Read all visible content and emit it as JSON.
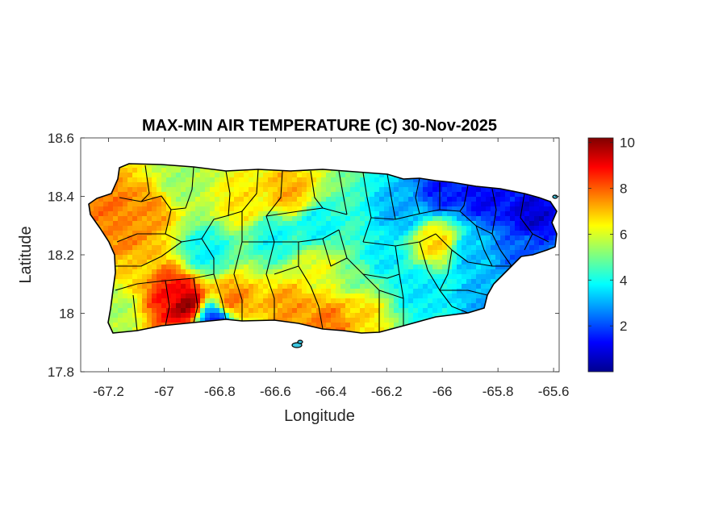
{
  "chart_data": {
    "type": "heatmap",
    "title": "MAX-MIN AIR TEMPERATURE (C) 30-Nov-2025",
    "xlabel": "Longitude",
    "ylabel": "Latitude",
    "xlim": [
      -67.3,
      -65.58
    ],
    "ylim": [
      17.8,
      18.6
    ],
    "x_ticks": [
      -67.2,
      -67,
      -66.8,
      -66.6,
      -66.4,
      -66.2,
      -66,
      -65.8,
      -65.6
    ],
    "x_tick_labels": [
      "-67.2",
      "-67",
      "-66.8",
      "-66.6",
      "-66.4",
      "-66.2",
      "-66",
      "-65.8",
      "-65.6"
    ],
    "y_ticks": [
      17.8,
      18,
      18.2,
      18.4,
      18.6
    ],
    "y_tick_labels": [
      "17.8",
      "18",
      "18.2",
      "18.4",
      "18.6"
    ],
    "colorbar": {
      "colormap": "jet",
      "range": [
        0,
        10.2
      ],
      "ticks": [
        2,
        4,
        6,
        8,
        10
      ],
      "tick_labels": [
        "2",
        "4",
        "6",
        "8",
        "10"
      ]
    },
    "hotspots": [
      {
        "lon": -66.92,
        "lat": 18.03,
        "value": 10.0
      },
      {
        "lon": -66.98,
        "lat": 18.07,
        "value": 8.8
      },
      {
        "lon": -67.2,
        "lat": 18.37,
        "value": 7.8
      },
      {
        "lon": -67.05,
        "lat": 18.36,
        "value": 7.5
      },
      {
        "lon": -67.14,
        "lat": 18.25,
        "value": 7.6
      },
      {
        "lon": -67.1,
        "lat": 18.15,
        "value": 6.8
      },
      {
        "lon": -66.76,
        "lat": 18.04,
        "value": 7.8
      },
      {
        "lon": -66.55,
        "lat": 18.02,
        "value": 7.4
      },
      {
        "lon": -66.4,
        "lat": 17.97,
        "value": 7.8
      },
      {
        "lon": -66.3,
        "lat": 18.01,
        "value": 6.8
      },
      {
        "lon": -66.55,
        "lat": 18.41,
        "value": 7.2
      },
      {
        "lon": -66.72,
        "lat": 18.38,
        "value": 6.6
      },
      {
        "lon": -66.45,
        "lat": 18.15,
        "value": 6.2
      },
      {
        "lon": -66.02,
        "lat": 18.24,
        "value": 6.8
      },
      {
        "lon": -66.95,
        "lat": 18.44,
        "value": 5.4
      },
      {
        "lon": -66.85,
        "lat": 18.21,
        "value": 3.8
      },
      {
        "lon": -66.6,
        "lat": 18.26,
        "value": 3.9
      },
      {
        "lon": -66.45,
        "lat": 18.3,
        "value": 3.8
      },
      {
        "lon": -66.15,
        "lat": 18.35,
        "value": 3.0
      },
      {
        "lon": -66.22,
        "lat": 18.18,
        "value": 3.6
      },
      {
        "lon": -66.08,
        "lat": 18.08,
        "value": 3.6
      },
      {
        "lon": -66.0,
        "lat": 18.42,
        "value": 1.5
      },
      {
        "lon": -65.85,
        "lat": 18.4,
        "value": 1.2
      },
      {
        "lon": -65.68,
        "lat": 18.33,
        "value": 0.8
      },
      {
        "lon": -65.72,
        "lat": 18.22,
        "value": 2.2
      },
      {
        "lon": -65.85,
        "lat": 18.05,
        "value": 3.0
      },
      {
        "lon": -65.9,
        "lat": 18.2,
        "value": 3.2
      },
      {
        "lon": -66.82,
        "lat": 17.98,
        "value": 1.5
      },
      {
        "lon": -67.18,
        "lat": 18.02,
        "value": 5.5
      },
      {
        "lon": -66.3,
        "lat": 18.12,
        "value": 5.0
      }
    ],
    "base_value": 5.2
  }
}
